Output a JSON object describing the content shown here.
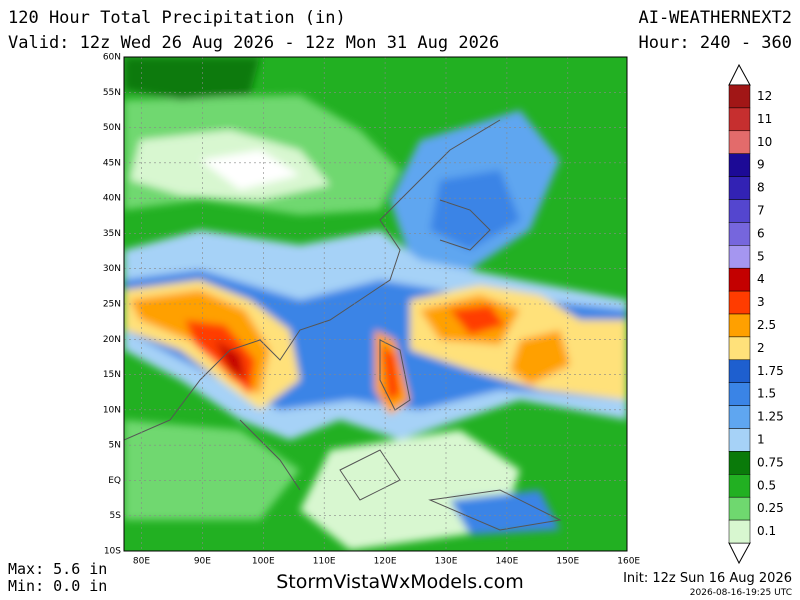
{
  "header": {
    "title": "120 Hour Total Precipitation (in)",
    "valid": "Valid: 12z Wed 26 Aug 2026 - 12z Mon 31 Aug 2026",
    "model": "AI-WEATHERNEXT2",
    "hour": "Hour: 240 - 360"
  },
  "map": {
    "lat_labels": [
      "60N",
      "55N",
      "50N",
      "45N",
      "40N",
      "35N",
      "30N",
      "25N",
      "20N",
      "15N",
      "10N",
      "5N",
      "EQ",
      "5S",
      "10S"
    ],
    "lon_labels": [
      "80E",
      "90E",
      "100E",
      "110E",
      "120E",
      "130E",
      "140E",
      "150E",
      "160E"
    ]
  },
  "colorbar": {
    "levels": [
      {
        "label": 12,
        "color": "#a11616"
      },
      {
        "label": 11,
        "color": "#c62f2f"
      },
      {
        "label": 10,
        "color": "#e36b6b"
      },
      {
        "label": 9,
        "color": "#1c0a96"
      },
      {
        "label": 8,
        "color": "#3222b4"
      },
      {
        "label": 7,
        "color": "#5446cf"
      },
      {
        "label": 6,
        "color": "#7666dd"
      },
      {
        "label": 5,
        "color": "#a596f0"
      },
      {
        "label": 4,
        "color": "#c30000"
      },
      {
        "label": 3,
        "color": "#ff3c00"
      },
      {
        "label": 2.5,
        "color": "#ffa000"
      },
      {
        "label": 2,
        "color": "#ffe17a"
      },
      {
        "label": 1.75,
        "color": "#1e5fcf"
      },
      {
        "label": 1.5,
        "color": "#3a84e6"
      },
      {
        "label": 1.25,
        "color": "#5fa6f0"
      },
      {
        "label": 1,
        "color": "#a6d2f7"
      },
      {
        "label": 0.75,
        "color": "#0a7a0a"
      },
      {
        "label": 0.5,
        "color": "#22b022"
      },
      {
        "label": 0.25,
        "color": "#6fd86f"
      },
      {
        "label": 0.1,
        "color": "#d8f7d0"
      }
    ]
  },
  "footer": {
    "max": "Max: 5.6 in",
    "min": "Min: 0.0 in",
    "site": "StormVistaWxModels.com",
    "init": "Init: 12z Sun 16 Aug 2026",
    "stamp": "2026-08-16-19:25 UTC"
  }
}
